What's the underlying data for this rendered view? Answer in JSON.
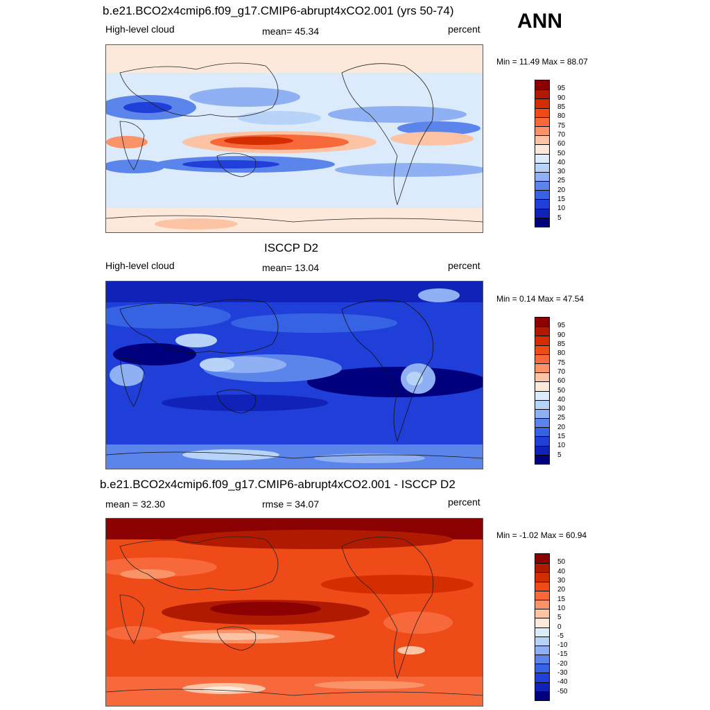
{
  "season": "ANN",
  "panels": [
    {
      "title": "b.e21.BCO2x4cmip6.f09_g17.CMIP6-abrupt4xCO2.001 (yrs 50-74)",
      "left_label": "High-level cloud",
      "center_label": "mean=  45.34",
      "right_label": "percent",
      "minmax": "Min =  11.49 Max =  88.07",
      "palette": "test"
    },
    {
      "title": "ISCCP D2",
      "left_label": "High-level cloud",
      "center_label": "mean=  13.04",
      "right_label": "percent",
      "minmax": "Min =   0.14 Max =  47.54",
      "palette": "obs"
    },
    {
      "title": "b.e21.BCO2x4cmip6.f09_g17.CMIP6-abrupt4xCO2.001 - ISCCP D2",
      "left_label": "mean =  32.30",
      "center_label": "rmse =  34.07",
      "right_label": "percent",
      "minmax": "Min =  -1.02 Max =  60.94",
      "palette": "diff"
    }
  ],
  "colorbars": [
    {
      "labels": [
        "95",
        "90",
        "85",
        "80",
        "75",
        "70",
        "60",
        "50",
        "40",
        "30",
        "25",
        "20",
        "15",
        "10",
        "5"
      ],
      "colors": [
        "#8b0000",
        "#b01a00",
        "#d42d00",
        "#ef4b18",
        "#f7693a",
        "#fa9468",
        "#fcc3a4",
        "#fde9dc",
        "#dcebfb",
        "#b7d3f8",
        "#8fb0f2",
        "#5c85ec",
        "#3662e4",
        "#1f3fd8",
        "#1022b8",
        "#00007f"
      ]
    },
    {
      "labels": [
        "95",
        "90",
        "85",
        "80",
        "75",
        "70",
        "60",
        "50",
        "40",
        "30",
        "25",
        "20",
        "15",
        "10",
        "5"
      ],
      "colors": [
        "#8b0000",
        "#b01a00",
        "#d42d00",
        "#ef4b18",
        "#f7693a",
        "#fa9468",
        "#fcc3a4",
        "#fde9dc",
        "#dcebfb",
        "#b7d3f8",
        "#8fb0f2",
        "#5c85ec",
        "#3662e4",
        "#1f3fd8",
        "#1022b8",
        "#00007f"
      ]
    },
    {
      "labels": [
        "50",
        "40",
        "30",
        "20",
        "15",
        "10",
        "5",
        "0",
        "-5",
        "-10",
        "-15",
        "-20",
        "-30",
        "-40",
        "-50"
      ],
      "colors": [
        "#8b0000",
        "#b01a00",
        "#d42d00",
        "#ef4b18",
        "#f7693a",
        "#fa9468",
        "#fcc3a4",
        "#fde9dc",
        "#dcebfb",
        "#b7d3f8",
        "#8fb0f2",
        "#5c85ec",
        "#3662e4",
        "#1f3fd8",
        "#1022b8",
        "#00007f"
      ]
    }
  ]
}
